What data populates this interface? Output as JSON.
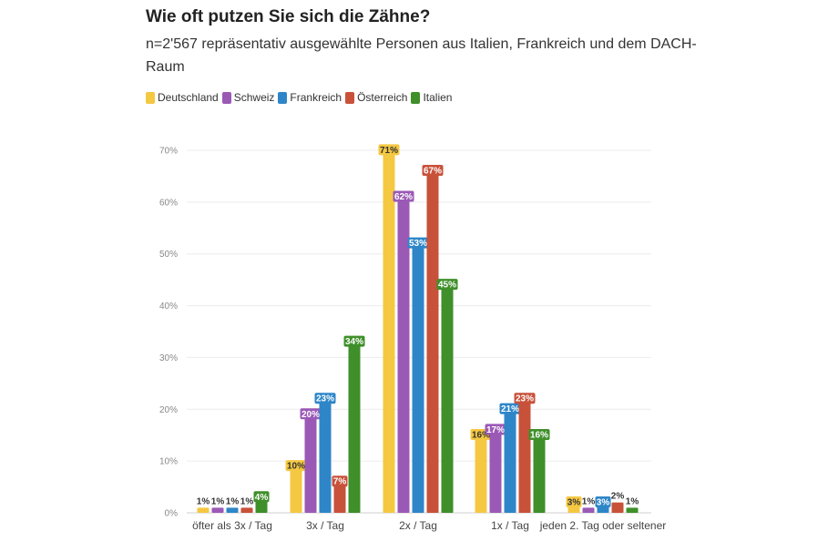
{
  "chart_data": {
    "type": "bar",
    "title": "Wie oft putzen Sie sich die Zähne?",
    "subtitle": "n=2'567 repräsentativ ausgewählte Personen aus Italien, Frankreich und dem DACH-Raum",
    "categories": [
      "öfter als 3x / Tag",
      "3x / Tag",
      "2x / Tag",
      "1x / Tag",
      "jeden 2. Tag oder seltener"
    ],
    "series": [
      {
        "name": "Deutschland",
        "color": "#F5C842",
        "values": [
          1,
          10,
          71,
          16,
          3
        ]
      },
      {
        "name": "Schweiz",
        "color": "#9B59B6",
        "values": [
          1,
          20,
          62,
          17,
          1
        ]
      },
      {
        "name": "Frankreich",
        "color": "#2E86C8",
        "values": [
          1,
          23,
          53,
          21,
          3
        ]
      },
      {
        "name": "Österreich",
        "color": "#C8513A",
        "values": [
          1,
          7,
          67,
          23,
          2
        ]
      },
      {
        "name": "Italien",
        "color": "#3F8F2A",
        "values": [
          4,
          34,
          45,
          16,
          1
        ]
      }
    ],
    "y_ticks": [
      "0%",
      "10%",
      "20%",
      "30%",
      "40%",
      "50%",
      "60%",
      "70%"
    ],
    "ylim": [
      0,
      70
    ],
    "value_suffix": "%",
    "xlabel": "",
    "ylabel": "",
    "legend": "top-left",
    "grid": true
  }
}
